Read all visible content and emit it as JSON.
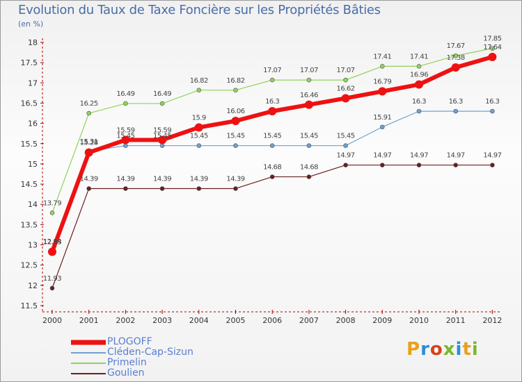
{
  "header": {
    "title": "Evolution du Taux de Taxe Foncière sur les Propriétés Bâties",
    "unit": "(en %)"
  },
  "logo": {
    "text": "Proxiti",
    "colors": [
      "#e8a21a",
      "#2a8fd8",
      "#d8421a",
      "#7bb82a",
      "#2a8fd8",
      "#e8a21a",
      "#7bb82a"
    ]
  },
  "chart_data": {
    "type": "line",
    "title": "Evolution du Taux de Taxe Foncière sur les Propriétés Bâties",
    "ylabel": "(en %)",
    "xlabel": "",
    "ylim": [
      11.5,
      18
    ],
    "yticks": [
      "11.5",
      "12",
      "12.5",
      "13",
      "13.5",
      "14",
      "14.5",
      "15",
      "15.5",
      "16",
      "16.5",
      "17",
      "17.5",
      "18"
    ],
    "x": [
      "2000",
      "2001",
      "2002",
      "2003",
      "2004",
      "2005",
      "2006",
      "2007",
      "2008",
      "2009",
      "2010",
      "2011",
      "2012"
    ],
    "grid": false,
    "legend_position": "bottom-left",
    "series": [
      {
        "name": "Goulien",
        "color": "#6b1e1e",
        "line_width": 1.2,
        "marker_r": 3,
        "values": [
          11.93,
          14.39,
          14.39,
          14.39,
          14.39,
          14.39,
          14.68,
          14.68,
          14.97,
          14.97,
          14.97,
          14.97,
          14.97
        ],
        "labels": [
          "11.93",
          "14.39",
          "14.39",
          "14.39",
          "14.39",
          "14.39",
          "14.68",
          "14.68",
          "14.97",
          "14.97",
          "14.97",
          "14.97",
          "14.97"
        ]
      },
      {
        "name": "Primelin",
        "color": "#8fd35a",
        "line_width": 1.2,
        "marker_r": 3,
        "values": [
          13.79,
          16.25,
          16.49,
          16.49,
          16.82,
          16.82,
          17.07,
          17.07,
          17.07,
          17.41,
          17.41,
          17.67,
          17.85
        ],
        "labels": [
          "13.79",
          "16.25",
          "16.49",
          "16.49",
          "16.82",
          "16.82",
          "17.07",
          "17.07",
          "17.07",
          "17.41",
          "17.41",
          "17.67",
          "17.85"
        ]
      },
      {
        "name": "Cléden-Cap-Sizun",
        "color": "#6fa0cf",
        "line_width": 1.2,
        "marker_r": 3,
        "values": [
          12.84,
          15.31,
          15.45,
          15.45,
          15.45,
          15.45,
          15.45,
          15.45,
          15.45,
          15.91,
          16.3,
          16.3,
          16.3
        ],
        "labels": [
          "12.84",
          "15.31",
          "15.45",
          "15.45",
          "15.45",
          "15.45",
          "15.45",
          "15.45",
          "15.45",
          "15.91",
          "16.3",
          "16.3",
          "16.3"
        ]
      },
      {
        "name": "PLOGOFF",
        "color": "#ee1111",
        "line_width": 6,
        "marker_r": 6,
        "values": [
          12.83,
          15.28,
          15.59,
          15.59,
          15.9,
          16.06,
          16.3,
          16.46,
          16.62,
          16.79,
          16.96,
          17.38,
          17.64
        ],
        "labels": [
          "12.83",
          "15.28",
          "15.59",
          "15.59",
          "15.9",
          "16.06",
          "16.3",
          "16.46",
          "16.62",
          "16.79",
          "16.96",
          "17.38",
          "17.64"
        ]
      }
    ],
    "legend": [
      "PLOGOFF",
      "Cléden-Cap-Sizun",
      "Primelin",
      "Goulien"
    ]
  }
}
